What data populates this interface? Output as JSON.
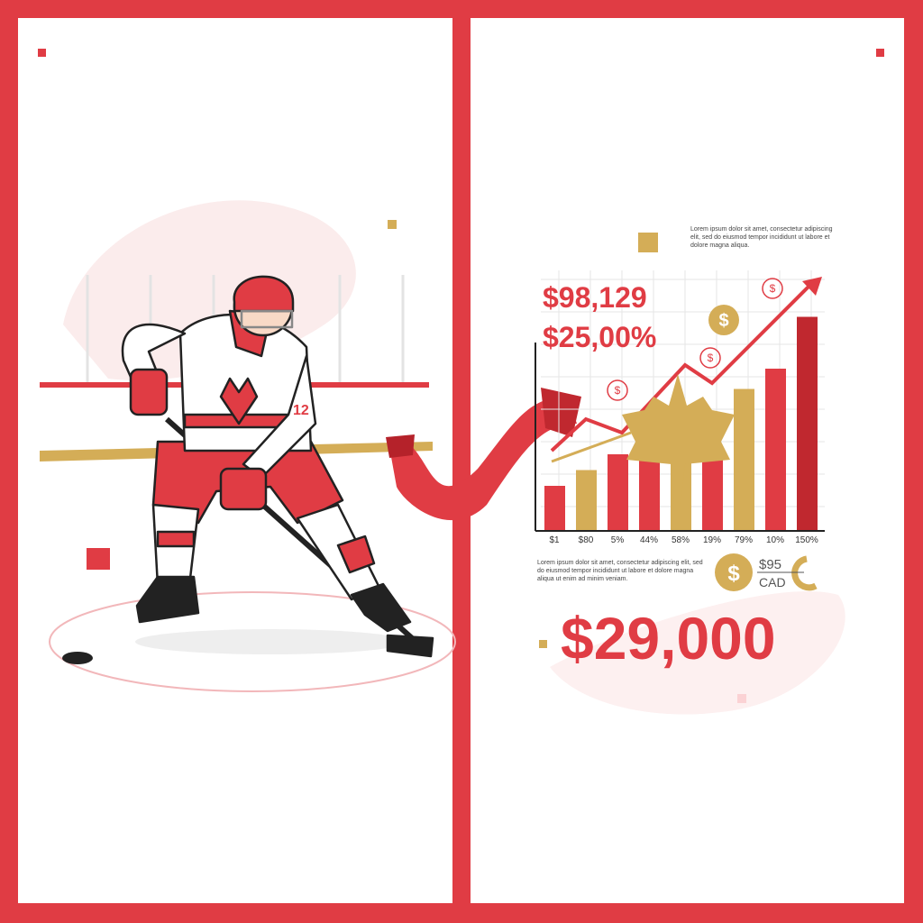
{
  "colors": {
    "frame": "#e03c44",
    "gold": "#d4ad57",
    "dark_red": "#c0282f",
    "ice_line": "#f2b7ba"
  },
  "headline_values": [
    "$98,129",
    "$25,00%"
  ],
  "intro_text": "Lorem ipsum dolor sit amet, consectetur adipiscing elit, sed do eiusmod tempor incididunt ut labore et dolore magna aliqua.",
  "body_text": "Lorem ipsum dolor sit amet, consectetur adipiscing elit, sed do eiusmod tempor incididunt ut labore et dolore magna aliqua ut enim ad minim veniam.",
  "price_badge": {
    "amount": "$95",
    "currency": "CAD"
  },
  "total": "$29,000",
  "player": {
    "jersey_number": "12"
  },
  "chart_data": {
    "type": "bar",
    "categories": [
      "$1",
      "$80",
      "5%",
      "44%",
      "58%",
      "19%",
      "79%",
      "10%",
      "150%"
    ],
    "bar_levels": [
      0.2,
      0.27,
      0.34,
      0.37,
      0.49,
      0.37,
      0.63,
      0.72,
      0.95
    ],
    "bar_colors": [
      "#e03c44",
      "#d4ad57",
      "#e03c44",
      "#e03c44",
      "#d4ad57",
      "#e03c44",
      "#d4ad57",
      "#e03c44",
      "#c0282f"
    ],
    "trend": "rising-arrow",
    "grid": true
  }
}
